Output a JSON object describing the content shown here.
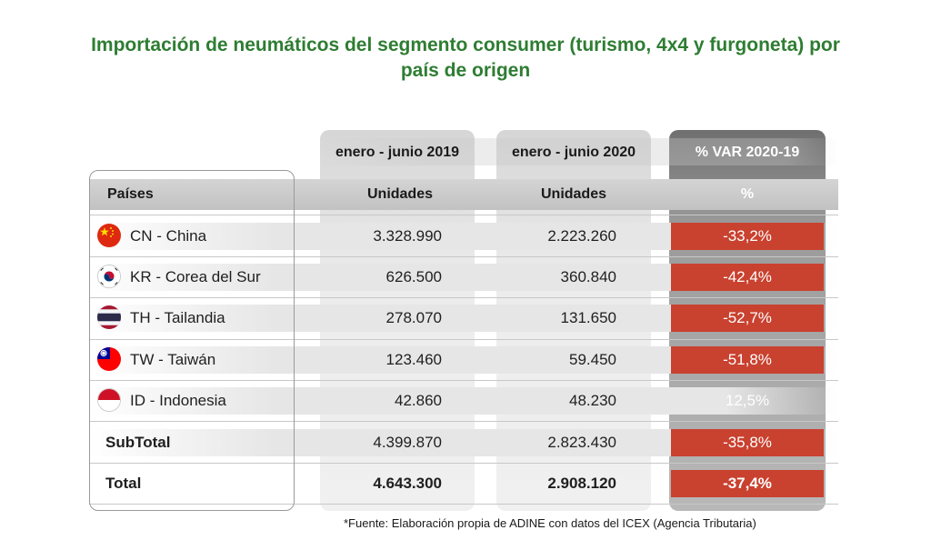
{
  "title_line1": "Importación de neumáticos del segmento consumer (turismo, 4x4 y furgoneta) por",
  "title_line2": "país de origen",
  "columns": {
    "period_2019": "enero - junio 2019",
    "period_2020": "enero - junio 2020",
    "var": "% VAR 2020-19",
    "countries_header": "Países",
    "units_2019": "Unidades",
    "units_2020": "Unidades",
    "pct": "%"
  },
  "rows": [
    {
      "country": "CN - China",
      "flag_icon": "china-flag-icon",
      "v2019": "3.328.990",
      "v2020": "2.223.260",
      "var": "-33,2%",
      "negative": true
    },
    {
      "country": "KR - Corea del Sur",
      "flag_icon": "south-korea-flag-icon",
      "v2019": "626.500",
      "v2020": "360.840",
      "var": "-42,4%",
      "negative": true
    },
    {
      "country": "TH - Tailandia",
      "flag_icon": "thailand-flag-icon",
      "v2019": "278.070",
      "v2020": "131.650",
      "var": "-52,7%",
      "negative": true
    },
    {
      "country": "TW - Taiwán",
      "flag_icon": "taiwan-flag-icon",
      "v2019": "123.460",
      "v2020": "59.450",
      "var": "-51,8%",
      "negative": true
    },
    {
      "country": "ID - Indonesia",
      "flag_icon": "indonesia-flag-icon",
      "v2019": "42.860",
      "v2020": "48.230",
      "var": "12,5%",
      "negative": false
    }
  ],
  "subtotal": {
    "label": "SubTotal",
    "v2019": "4.399.870",
    "v2020": "2.823.430",
    "var": "-35,8%"
  },
  "total": {
    "label": "Total",
    "v2019": "4.643.300",
    "v2020": "2.908.120",
    "var": "-37,4%"
  },
  "footnote": "*Fuente: Elaboración propia de ADINE con datos del ICEX (Agencia Tributaria)",
  "colors": {
    "title": "#2e7d32",
    "negative": "#c9412f"
  }
}
